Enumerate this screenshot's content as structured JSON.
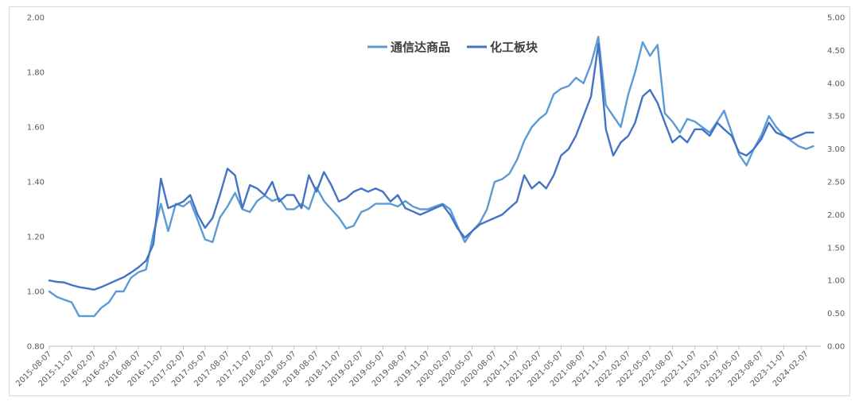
{
  "chart_data": {
    "type": "line",
    "title": "",
    "xlabel": "",
    "ylabel": "",
    "y_left": {
      "ylim": [
        0.8,
        2.0
      ],
      "ticks": [
        "0.80",
        "1.00",
        "1.20",
        "1.40",
        "1.60",
        "1.80",
        "2.00"
      ]
    },
    "y_right": {
      "ylim": [
        0.0,
        5.0
      ],
      "ticks": [
        "0.00",
        "0.50",
        "1.00",
        "1.50",
        "2.00",
        "2.50",
        "3.00",
        "3.50",
        "4.00",
        "4.50",
        "5.00"
      ]
    },
    "x_range": [
      "2015-08-07",
      "2024-04-07"
    ],
    "x_ticks": [
      "2015-08-07",
      "2015-11-07",
      "2016-02-07",
      "2016-05-07",
      "2016-08-07",
      "2016-11-07",
      "2017-02-07",
      "2017-05-07",
      "2017-08-07",
      "2017-11-07",
      "2018-02-07",
      "2018-05-07",
      "2018-08-07",
      "2018-11-07",
      "2019-02-07",
      "2019-05-07",
      "2019-08-07",
      "2019-11-07",
      "2020-02-07",
      "2020-05-07",
      "2020-08-07",
      "2020-11-07",
      "2021-02-07",
      "2021-05-07",
      "2021-08-07",
      "2021-11-07",
      "2022-02-07",
      "2022-05-07",
      "2022-08-07",
      "2022-11-07",
      "2023-02-07",
      "2023-05-07",
      "2023-08-07",
      "2023-11-07",
      "2024-02-07"
    ],
    "grid": false,
    "legend": "top-center",
    "series": [
      {
        "name": "通信达商品",
        "axis": "left",
        "color": "#5b9bd5",
        "points": [
          [
            "2015-08-07",
            1.0
          ],
          [
            "2015-09-07",
            0.98
          ],
          [
            "2015-10-07",
            0.97
          ],
          [
            "2015-11-07",
            0.96
          ],
          [
            "2015-12-07",
            0.91
          ],
          [
            "2016-01-07",
            0.91
          ],
          [
            "2016-02-07",
            0.91
          ],
          [
            "2016-03-07",
            0.94
          ],
          [
            "2016-04-07",
            0.96
          ],
          [
            "2016-05-07",
            1.0
          ],
          [
            "2016-06-07",
            1.0
          ],
          [
            "2016-07-07",
            1.05
          ],
          [
            "2016-08-07",
            1.07
          ],
          [
            "2016-09-07",
            1.08
          ],
          [
            "2016-10-07",
            1.21
          ],
          [
            "2016-11-07",
            1.32
          ],
          [
            "2016-12-07",
            1.22
          ],
          [
            "2017-01-07",
            1.32
          ],
          [
            "2017-02-07",
            1.31
          ],
          [
            "2017-03-07",
            1.33
          ],
          [
            "2017-04-07",
            1.26
          ],
          [
            "2017-05-07",
            1.19
          ],
          [
            "2017-06-07",
            1.18
          ],
          [
            "2017-07-07",
            1.27
          ],
          [
            "2017-08-07",
            1.31
          ],
          [
            "2017-09-07",
            1.36
          ],
          [
            "2017-10-07",
            1.3
          ],
          [
            "2017-11-07",
            1.29
          ],
          [
            "2017-12-07",
            1.33
          ],
          [
            "2018-01-07",
            1.35
          ],
          [
            "2018-02-07",
            1.33
          ],
          [
            "2018-03-07",
            1.34
          ],
          [
            "2018-04-07",
            1.3
          ],
          [
            "2018-05-07",
            1.3
          ],
          [
            "2018-06-07",
            1.32
          ],
          [
            "2018-07-07",
            1.3
          ],
          [
            "2018-08-07",
            1.38
          ],
          [
            "2018-09-07",
            1.33
          ],
          [
            "2018-10-07",
            1.3
          ],
          [
            "2018-11-07",
            1.27
          ],
          [
            "2018-12-07",
            1.23
          ],
          [
            "2019-01-07",
            1.24
          ],
          [
            "2019-02-07",
            1.29
          ],
          [
            "2019-03-07",
            1.3
          ],
          [
            "2019-04-07",
            1.32
          ],
          [
            "2019-05-07",
            1.32
          ],
          [
            "2019-06-07",
            1.32
          ],
          [
            "2019-07-07",
            1.31
          ],
          [
            "2019-08-07",
            1.33
          ],
          [
            "2019-09-07",
            1.31
          ],
          [
            "2019-10-07",
            1.3
          ],
          [
            "2019-11-07",
            1.3
          ],
          [
            "2019-12-07",
            1.31
          ],
          [
            "2020-01-07",
            1.32
          ],
          [
            "2020-02-07",
            1.3
          ],
          [
            "2020-03-07",
            1.24
          ],
          [
            "2020-04-07",
            1.18
          ],
          [
            "2020-05-07",
            1.22
          ],
          [
            "2020-06-07",
            1.25
          ],
          [
            "2020-07-07",
            1.3
          ],
          [
            "2020-08-07",
            1.4
          ],
          [
            "2020-09-07",
            1.41
          ],
          [
            "2020-10-07",
            1.43
          ],
          [
            "2020-11-07",
            1.48
          ],
          [
            "2020-12-07",
            1.55
          ],
          [
            "2021-01-07",
            1.6
          ],
          [
            "2021-02-07",
            1.63
          ],
          [
            "2021-03-07",
            1.65
          ],
          [
            "2021-04-07",
            1.72
          ],
          [
            "2021-05-07",
            1.74
          ],
          [
            "2021-06-07",
            1.75
          ],
          [
            "2021-07-07",
            1.78
          ],
          [
            "2021-08-07",
            1.76
          ],
          [
            "2021-09-07",
            1.83
          ],
          [
            "2021-10-07",
            1.93
          ],
          [
            "2021-11-07",
            1.68
          ],
          [
            "2021-12-07",
            1.64
          ],
          [
            "2022-01-07",
            1.6
          ],
          [
            "2022-02-07",
            1.72
          ],
          [
            "2022-03-07",
            1.8
          ],
          [
            "2022-04-07",
            1.91
          ],
          [
            "2022-05-07",
            1.86
          ],
          [
            "2022-06-07",
            1.9
          ],
          [
            "2022-07-07",
            1.65
          ],
          [
            "2022-08-07",
            1.62
          ],
          [
            "2022-09-07",
            1.58
          ],
          [
            "2022-10-07",
            1.63
          ],
          [
            "2022-11-07",
            1.62
          ],
          [
            "2022-12-07",
            1.6
          ],
          [
            "2023-01-07",
            1.58
          ],
          [
            "2023-02-07",
            1.62
          ],
          [
            "2023-03-07",
            1.66
          ],
          [
            "2023-04-07",
            1.58
          ],
          [
            "2023-05-07",
            1.5
          ],
          [
            "2023-06-07",
            1.46
          ],
          [
            "2023-07-07",
            1.52
          ],
          [
            "2023-08-07",
            1.57
          ],
          [
            "2023-09-07",
            1.64
          ],
          [
            "2023-10-07",
            1.6
          ],
          [
            "2023-11-07",
            1.57
          ],
          [
            "2023-12-07",
            1.55
          ],
          [
            "2024-01-07",
            1.53
          ],
          [
            "2024-02-07",
            1.52
          ],
          [
            "2024-03-07",
            1.53
          ]
        ]
      },
      {
        "name": "化工板块",
        "axis": "right",
        "color": "#4472c4",
        "points": [
          [
            "2015-08-07",
            1.0
          ],
          [
            "2015-09-07",
            0.98
          ],
          [
            "2015-10-07",
            0.97
          ],
          [
            "2015-11-07",
            0.93
          ],
          [
            "2015-12-07",
            0.9
          ],
          [
            "2016-01-07",
            0.88
          ],
          [
            "2016-02-07",
            0.86
          ],
          [
            "2016-03-07",
            0.9
          ],
          [
            "2016-04-07",
            0.95
          ],
          [
            "2016-05-07",
            1.0
          ],
          [
            "2016-06-07",
            1.05
          ],
          [
            "2016-07-07",
            1.12
          ],
          [
            "2016-08-07",
            1.2
          ],
          [
            "2016-09-07",
            1.3
          ],
          [
            "2016-10-07",
            1.55
          ],
          [
            "2016-11-07",
            2.55
          ],
          [
            "2016-12-07",
            2.1
          ],
          [
            "2017-01-07",
            2.15
          ],
          [
            "2017-02-07",
            2.2
          ],
          [
            "2017-03-07",
            2.3
          ],
          [
            "2017-04-07",
            2.0
          ],
          [
            "2017-05-07",
            1.8
          ],
          [
            "2017-06-07",
            1.95
          ],
          [
            "2017-07-07",
            2.3
          ],
          [
            "2017-08-07",
            2.7
          ],
          [
            "2017-09-07",
            2.6
          ],
          [
            "2017-10-07",
            2.1
          ],
          [
            "2017-11-07",
            2.45
          ],
          [
            "2017-12-07",
            2.4
          ],
          [
            "2018-01-07",
            2.3
          ],
          [
            "2018-02-07",
            2.5
          ],
          [
            "2018-03-07",
            2.2
          ],
          [
            "2018-04-07",
            2.3
          ],
          [
            "2018-05-07",
            2.3
          ],
          [
            "2018-06-07",
            2.1
          ],
          [
            "2018-07-07",
            2.6
          ],
          [
            "2018-08-07",
            2.35
          ],
          [
            "2018-09-07",
            2.65
          ],
          [
            "2018-10-07",
            2.45
          ],
          [
            "2018-11-07",
            2.2
          ],
          [
            "2018-12-07",
            2.25
          ],
          [
            "2019-01-07",
            2.35
          ],
          [
            "2019-02-07",
            2.4
          ],
          [
            "2019-03-07",
            2.35
          ],
          [
            "2019-04-07",
            2.4
          ],
          [
            "2019-05-07",
            2.35
          ],
          [
            "2019-06-07",
            2.2
          ],
          [
            "2019-07-07",
            2.3
          ],
          [
            "2019-08-07",
            2.1
          ],
          [
            "2019-09-07",
            2.05
          ],
          [
            "2019-10-07",
            2.0
          ],
          [
            "2019-11-07",
            2.05
          ],
          [
            "2019-12-07",
            2.1
          ],
          [
            "2020-01-07",
            2.15
          ],
          [
            "2020-02-07",
            2.0
          ],
          [
            "2020-03-07",
            1.8
          ],
          [
            "2020-04-07",
            1.65
          ],
          [
            "2020-05-07",
            1.75
          ],
          [
            "2020-06-07",
            1.85
          ],
          [
            "2020-07-07",
            1.9
          ],
          [
            "2020-08-07",
            1.95
          ],
          [
            "2020-09-07",
            2.0
          ],
          [
            "2020-10-07",
            2.1
          ],
          [
            "2020-11-07",
            2.2
          ],
          [
            "2020-12-07",
            2.6
          ],
          [
            "2021-01-07",
            2.4
          ],
          [
            "2021-02-07",
            2.5
          ],
          [
            "2021-03-07",
            2.4
          ],
          [
            "2021-04-07",
            2.6
          ],
          [
            "2021-05-07",
            2.9
          ],
          [
            "2021-06-07",
            3.0
          ],
          [
            "2021-07-07",
            3.2
          ],
          [
            "2021-08-07",
            3.5
          ],
          [
            "2021-09-07",
            3.8
          ],
          [
            "2021-10-07",
            4.6
          ],
          [
            "2021-11-07",
            3.3
          ],
          [
            "2021-12-07",
            2.9
          ],
          [
            "2022-01-07",
            3.1
          ],
          [
            "2022-02-07",
            3.2
          ],
          [
            "2022-03-07",
            3.4
          ],
          [
            "2022-04-07",
            3.8
          ],
          [
            "2022-05-07",
            3.9
          ],
          [
            "2022-06-07",
            3.7
          ],
          [
            "2022-07-07",
            3.4
          ],
          [
            "2022-08-07",
            3.1
          ],
          [
            "2022-09-07",
            3.2
          ],
          [
            "2022-10-07",
            3.1
          ],
          [
            "2022-11-07",
            3.3
          ],
          [
            "2022-12-07",
            3.3
          ],
          [
            "2023-01-07",
            3.2
          ],
          [
            "2023-02-07",
            3.4
          ],
          [
            "2023-03-07",
            3.3
          ],
          [
            "2023-04-07",
            3.2
          ],
          [
            "2023-05-07",
            2.95
          ],
          [
            "2023-06-07",
            2.9
          ],
          [
            "2023-07-07",
            3.0
          ],
          [
            "2023-08-07",
            3.15
          ],
          [
            "2023-09-07",
            3.4
          ],
          [
            "2023-10-07",
            3.25
          ],
          [
            "2023-11-07",
            3.2
          ],
          [
            "2023-12-07",
            3.15
          ],
          [
            "2024-01-07",
            3.2
          ],
          [
            "2024-02-07",
            3.25
          ],
          [
            "2024-03-07",
            3.25
          ]
        ]
      }
    ]
  }
}
